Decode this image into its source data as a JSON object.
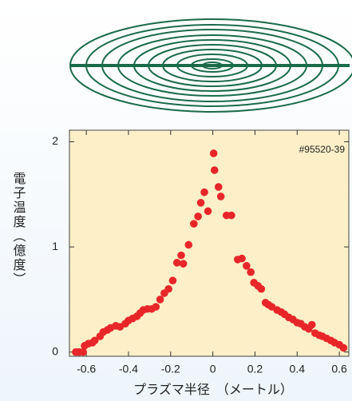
{
  "chart_data": {
    "type": "scatter",
    "annotation": "#95520-39",
    "x_label": "プラズマ半径　（メートル）",
    "y_label": "電子温度（億度）",
    "xlim": [
      -0.68,
      0.645
    ],
    "ylim": [
      -0.04,
      2.11
    ],
    "xticks": [
      -0.6,
      -0.4,
      -0.2,
      0,
      0.2,
      0.4,
      0.6
    ],
    "yticks": [
      0,
      1,
      2
    ],
    "series": [
      {
        "color": "#e8262a",
        "x": [
          -0.65,
          -0.634,
          -0.615,
          -0.608,
          -0.59,
          -0.57,
          -0.56,
          -0.535,
          -0.52,
          -0.5,
          -0.485,
          -0.46,
          -0.44,
          -0.415,
          -0.4,
          -0.38,
          -0.36,
          -0.345,
          -0.33,
          -0.31,
          -0.29,
          -0.27,
          -0.25,
          -0.23,
          -0.21,
          -0.19,
          -0.17,
          -0.15,
          -0.14,
          -0.115,
          -0.09,
          -0.07,
          -0.057,
          -0.04,
          -0.023,
          0.004,
          0.008,
          0.027,
          0.038,
          0.065,
          0.088,
          0.118,
          0.138,
          0.16,
          0.18,
          0.195,
          0.214,
          0.23,
          0.25,
          0.264,
          0.28,
          0.305,
          0.325,
          0.34,
          0.36,
          0.38,
          0.4,
          0.417,
          0.436,
          0.455,
          0.47,
          0.485,
          0.505,
          0.52,
          0.54,
          0.56,
          0.577,
          0.6,
          0.62
        ],
        "values": [
          0,
          0,
          0,
          0.06,
          0.08,
          0.09,
          0.11,
          0.15,
          0.19,
          0.21,
          0.23,
          0.25,
          0.24,
          0.27,
          0.3,
          0.32,
          0.34,
          0.37,
          0.4,
          0.41,
          0.41,
          0.43,
          0.5,
          0.56,
          0.6,
          0.68,
          0.85,
          0.92,
          0.84,
          1.02,
          1.22,
          1.29,
          1.42,
          1.52,
          1.34,
          1.89,
          1.73,
          1.57,
          1.48,
          1.3,
          1.3,
          0.88,
          0.89,
          0.82,
          0.76,
          0.66,
          0.63,
          0.6,
          0.47,
          0.45,
          0.43,
          0.4,
          0.38,
          0.36,
          0.33,
          0.31,
          0.28,
          0.27,
          0.24,
          0.22,
          0.26,
          0.18,
          0.16,
          0.15,
          0.13,
          0.11,
          0.09,
          0.07,
          0.04
        ]
      }
    ]
  }
}
